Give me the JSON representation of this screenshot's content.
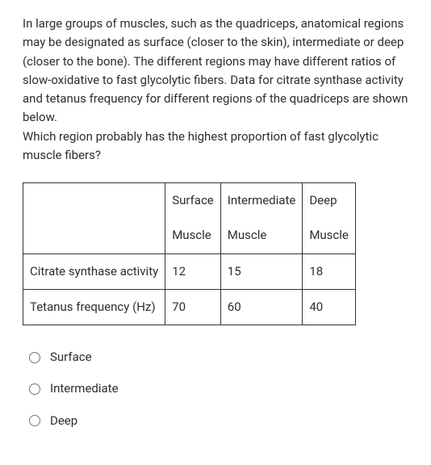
{
  "question": {
    "paragraph1": "In large groups of muscles, such as the quadriceps, anatomical regions may be designated as surface (closer to the skin), intermediate or deep (closer to the bone). The different regions may have different ratios of slow-oxidative to fast glycolytic fibers. Data for citrate synthase activity and tetanus frequency for different regions of the quadriceps are shown below.",
    "paragraph2": "Which region probably has the highest proportion of fast glycolytic muscle fibers?"
  },
  "table": {
    "header": {
      "blank": "",
      "col1_top": "Surface",
      "col2_top": "Intermediate",
      "col3_top": "Deep",
      "col1_bot": "Muscle",
      "col2_bot": "Muscle",
      "col3_bot": "Muscle"
    },
    "rows": [
      {
        "label": "Citrate synthase activity",
        "c1": "12",
        "c2": "15",
        "c3": "18"
      },
      {
        "label": "Tetanus frequency (Hz)",
        "c1": "70",
        "c2": "60",
        "c3": "40"
      }
    ],
    "column_widths": [
      "auto",
      "68px",
      "100px",
      "58px"
    ],
    "border_color": "#333333",
    "text_color": "#2e2e2e",
    "font_size_pt": 11
  },
  "options": [
    {
      "label": "Surface"
    },
    {
      "label": "Intermediate"
    },
    {
      "label": "Deep"
    }
  ],
  "styling": {
    "background_color": "#ffffff",
    "text_color": "#2e2e2e",
    "font_family": "sans-serif",
    "body_font_size_pt": 11,
    "line_height": 1.55
  }
}
